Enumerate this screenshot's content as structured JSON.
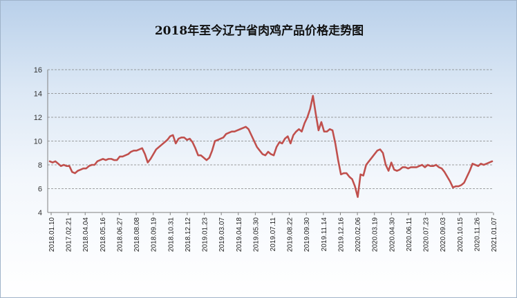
{
  "chart_data": {
    "type": "line",
    "title": "2018年至今辽宁省肉鸡产品价格走势图",
    "xlabel": "",
    "ylabel": "",
    "ylim": [
      4,
      16
    ],
    "yticks": [
      "4",
      "6",
      "8",
      "10",
      "12",
      "14",
      "16"
    ],
    "grid": "horizontal dashed",
    "legend": "none",
    "colors": {
      "line": "#c0504d",
      "grid": "#808080",
      "axis": "#808080"
    },
    "x_tick_labels": [
      "2018.01.10",
      "2017.02.21",
      "2018.04.04",
      "2018.05.16",
      "2018.06.27",
      "2018.08.08",
      "2018.09.19",
      "2018.10.31",
      "2018.12.12",
      "2019.01.23",
      "2019.03.07",
      "2019.04.18",
      "2019.05.30",
      "2019.07.11",
      "2019.08.22",
      "2019.09.30",
      "2019.11.14",
      "2019.12.16",
      "2020.02.06",
      "2020.03.19",
      "2020.04.30",
      "2020.06.11",
      "2020.07.23",
      "2020.09.03",
      "2020.10.15",
      "2020.11.26",
      "2021.01.07"
    ],
    "series": [
      {
        "values": [
          8.3,
          8.2,
          8.3,
          8.1,
          7.9,
          8.0,
          7.9,
          7.9,
          7.4,
          7.3,
          7.5,
          7.6,
          7.7,
          7.7,
          7.9,
          8.0,
          8.0,
          8.3,
          8.4,
          8.5,
          8.4,
          8.5,
          8.5,
          8.4,
          8.4,
          8.7,
          8.7,
          8.8,
          8.9,
          9.1,
          9.2,
          9.2,
          9.3,
          9.4,
          8.9,
          8.2,
          8.5,
          8.9,
          9.3,
          9.5,
          9.7,
          9.9,
          10.1,
          10.4,
          10.5,
          9.8,
          10.2,
          10.3,
          10.3,
          10.1,
          10.2,
          9.9,
          9.4,
          8.8,
          8.8,
          8.6,
          8.4,
          8.6,
          9.2,
          10.0,
          10.1,
          10.2,
          10.3,
          10.6,
          10.7,
          10.8,
          10.8,
          10.9,
          11.0,
          11.1,
          11.2,
          11.0,
          10.5,
          10.0,
          9.5,
          9.2,
          8.9,
          8.8,
          9.1,
          8.9,
          8.8,
          9.5,
          9.9,
          9.8,
          10.2,
          10.4,
          9.8,
          10.5,
          10.8,
          11.0,
          10.8,
          11.5,
          12.0,
          12.7,
          13.8,
          12.3,
          10.9,
          11.6,
          10.8,
          10.8,
          11.0,
          10.9,
          9.8,
          8.4,
          7.2,
          7.3,
          7.3,
          7.0,
          6.8,
          6.2,
          5.3,
          7.2,
          7.1,
          8.0,
          8.3,
          8.6,
          8.9,
          9.2,
          9.3,
          9.0,
          8.0,
          7.5,
          8.2,
          7.6,
          7.5,
          7.6,
          7.8,
          7.8,
          7.7,
          7.8,
          7.8,
          7.8,
          7.9,
          8.0,
          7.8,
          8.0,
          7.9,
          7.9,
          8.0,
          7.8,
          7.7,
          7.4,
          7.0,
          6.6,
          6.1,
          6.2,
          6.2,
          6.3,
          6.5,
          7.0,
          7.5,
          8.1,
          8.0,
          7.9,
          8.1,
          8.0,
          8.1,
          8.2,
          8.3
        ]
      }
    ]
  }
}
